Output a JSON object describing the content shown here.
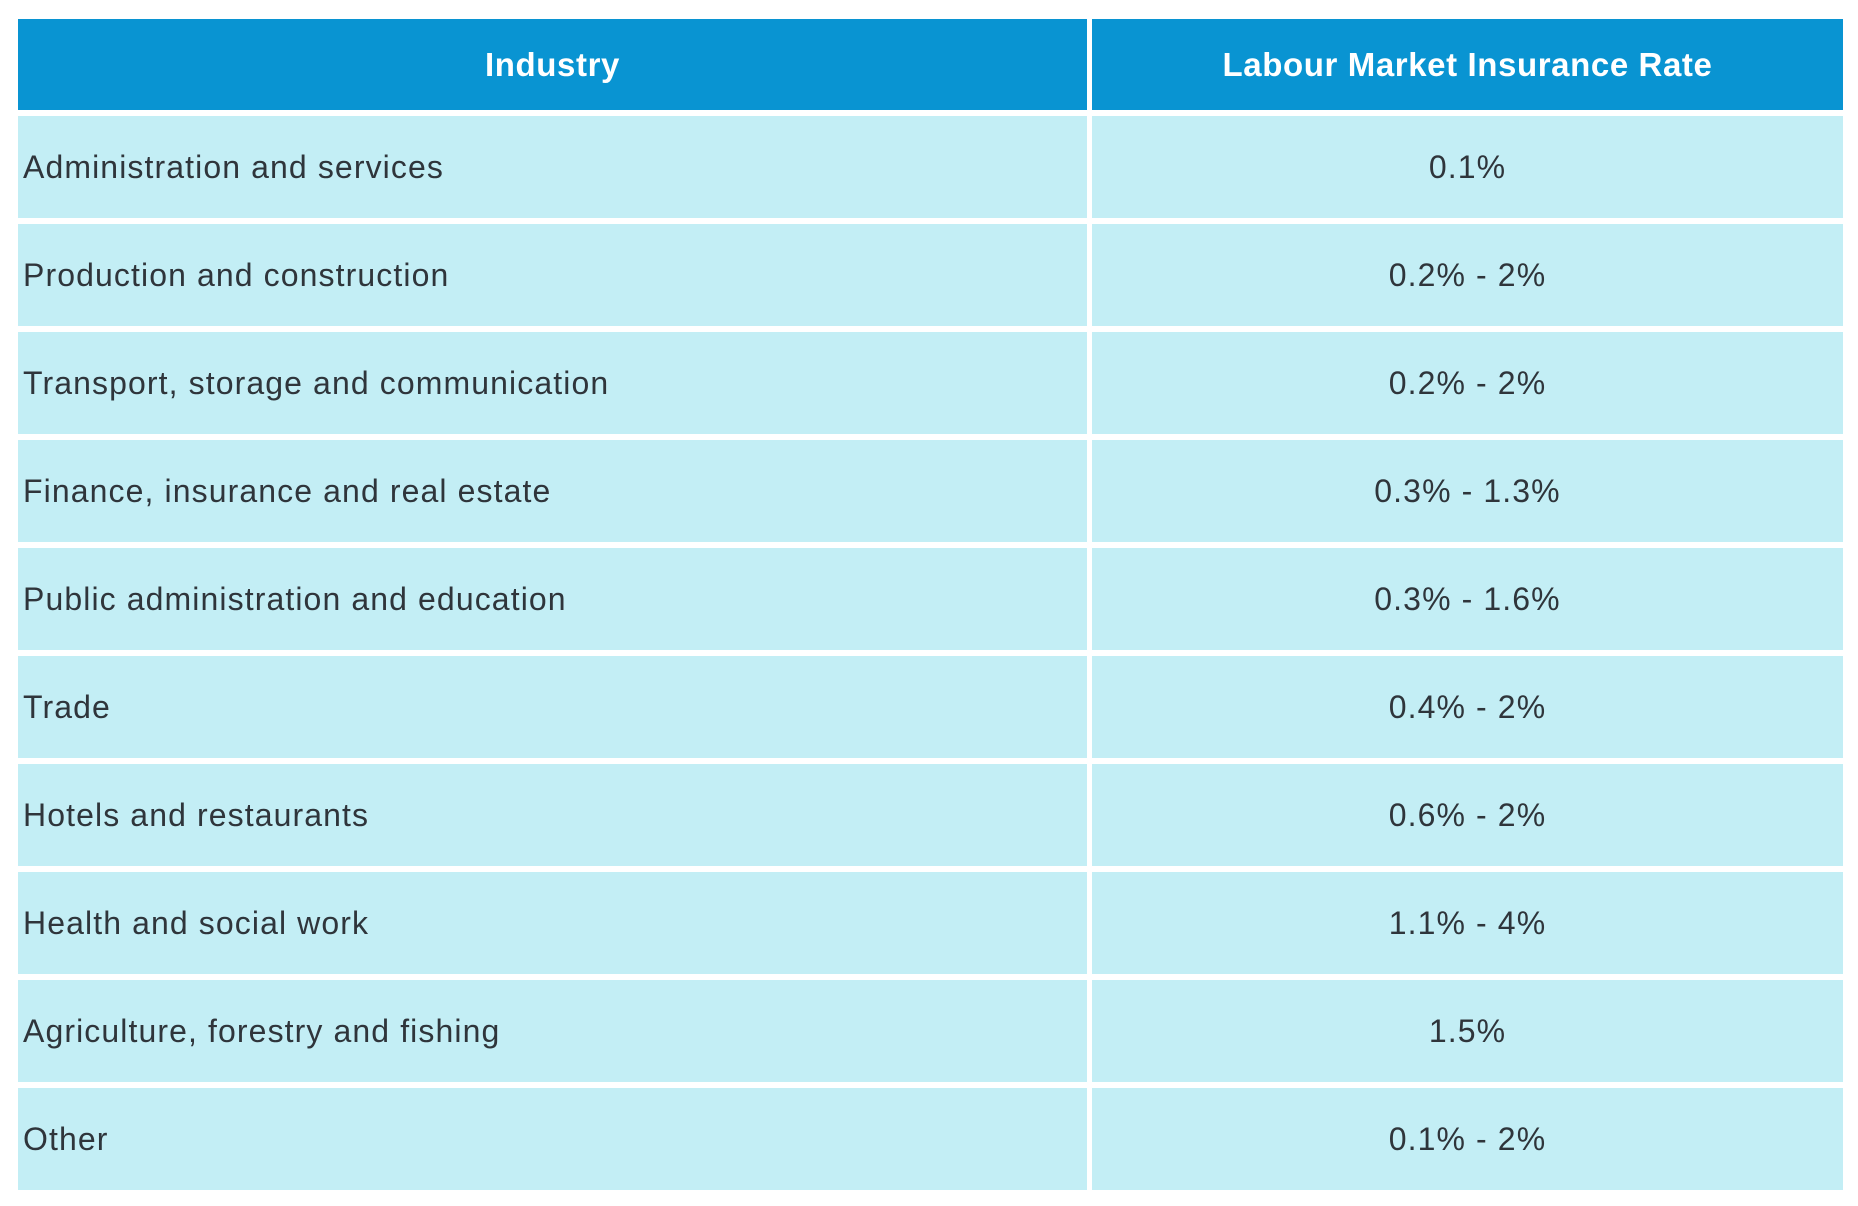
{
  "colors": {
    "page_bg": "#ffffff",
    "header_bg": "#0994d2",
    "header_text": "#ffffff",
    "row_bg": "#c3eef5",
    "row_text": "#2f353b"
  },
  "chart_data": {
    "type": "table",
    "columns": [
      "Industry",
      "Labour Market Insurance Rate"
    ],
    "rows": [
      [
        "Administration and services",
        "0.1%"
      ],
      [
        "Production and construction",
        "0.2% - 2%"
      ],
      [
        "Transport, storage and communication",
        "0.2% - 2%"
      ],
      [
        "Finance, insurance and real estate",
        "0.3% - 1.3%"
      ],
      [
        "Public administration and education",
        "0.3% - 1.6%"
      ],
      [
        "Trade",
        "0.4% - 2%"
      ],
      [
        "Hotels and restaurants",
        "0.6% - 2%"
      ],
      [
        "Health and social work",
        "1.1% - 4%"
      ],
      [
        "Agriculture, forestry and fishing",
        "1.5%"
      ],
      [
        "Other",
        "0.1% - 2%"
      ]
    ],
    "layout": {
      "header_align": "center",
      "industry_align": "left",
      "rate_align": "center",
      "grid": "white gutters between all cells"
    }
  }
}
